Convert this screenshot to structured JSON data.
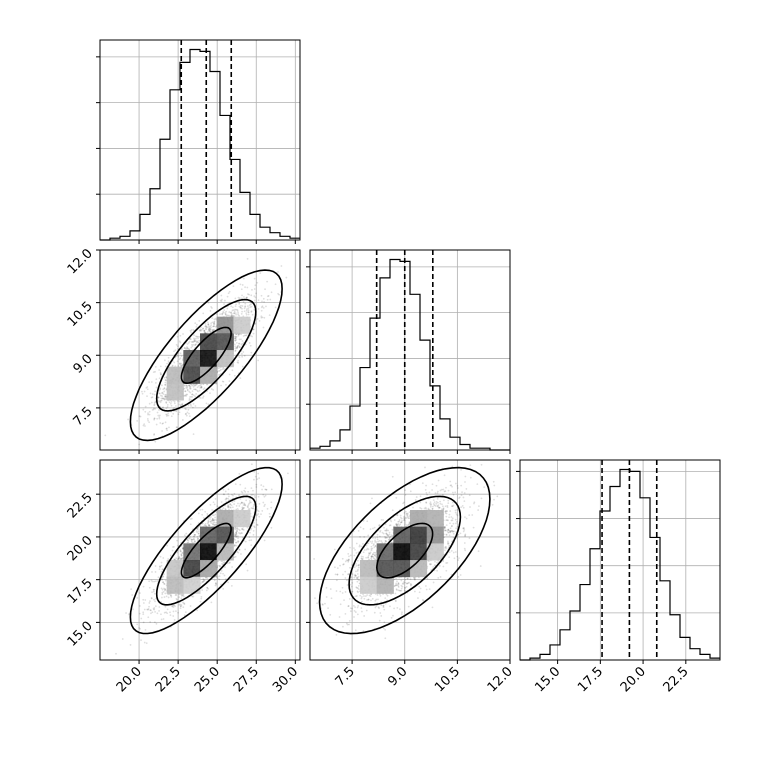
{
  "chart_data": {
    "type": "corner",
    "parameters": [
      "",
      "",
      ""
    ],
    "ranges": [
      [
        17.5,
        30.3
      ],
      [
        6.3,
        12.0
      ],
      [
        12.8,
        24.5
      ]
    ],
    "ticks": [
      [
        "20.0",
        "22.5",
        "25.0",
        "27.5",
        "30.0"
      ],
      [
        "7.5",
        "9.0",
        "10.5",
        "12.0"
      ],
      [
        "15.0",
        "17.5",
        "20.0",
        "22.5"
      ]
    ],
    "quantiles": [
      [
        22.7,
        24.3,
        25.9
      ],
      [
        8.2,
        9.0,
        9.8
      ],
      [
        17.6,
        19.2,
        20.8
      ]
    ],
    "histograms": [
      {
        "edges_start": 17.5,
        "edges_end": 30.3,
        "counts": [
          0,
          1,
          2,
          5,
          14,
          28,
          55,
          82,
          97,
          104,
          103,
          92,
          68,
          44,
          26,
          14,
          7,
          4,
          2,
          1
        ]
      },
      {
        "edges_start": 6.3,
        "edges_end": 12.0,
        "counts": [
          1,
          2,
          5,
          11,
          24,
          45,
          72,
          94,
          104,
          103,
          85,
          60,
          35,
          17,
          7,
          3,
          1,
          1,
          0,
          0
        ]
      },
      {
        "edges_start": 12.8,
        "edges_end": 24.5,
        "counts": [
          0,
          1,
          3,
          8,
          16,
          26,
          40,
          59,
          79,
          92,
          101,
          100,
          86,
          65,
          42,
          24,
          12,
          6,
          3,
          1
        ]
      }
    ],
    "joint": [
      {
        "row": 1,
        "col": 0,
        "mean": [
          24.3,
          9.0
        ],
        "sd": [
          1.6,
          0.8
        ],
        "corr": 0.78
      },
      {
        "row": 2,
        "col": 0,
        "mean": [
          24.3,
          19.2
        ],
        "sd": [
          1.6,
          1.6
        ],
        "corr": 0.8
      },
      {
        "row": 2,
        "col": 1,
        "mean": [
          9.0,
          19.2
        ],
        "sd": [
          0.8,
          1.6
        ],
        "corr": 0.62
      }
    ],
    "grid": true,
    "contour_levels": [
      0.39,
      0.86,
      0.99
    ]
  }
}
